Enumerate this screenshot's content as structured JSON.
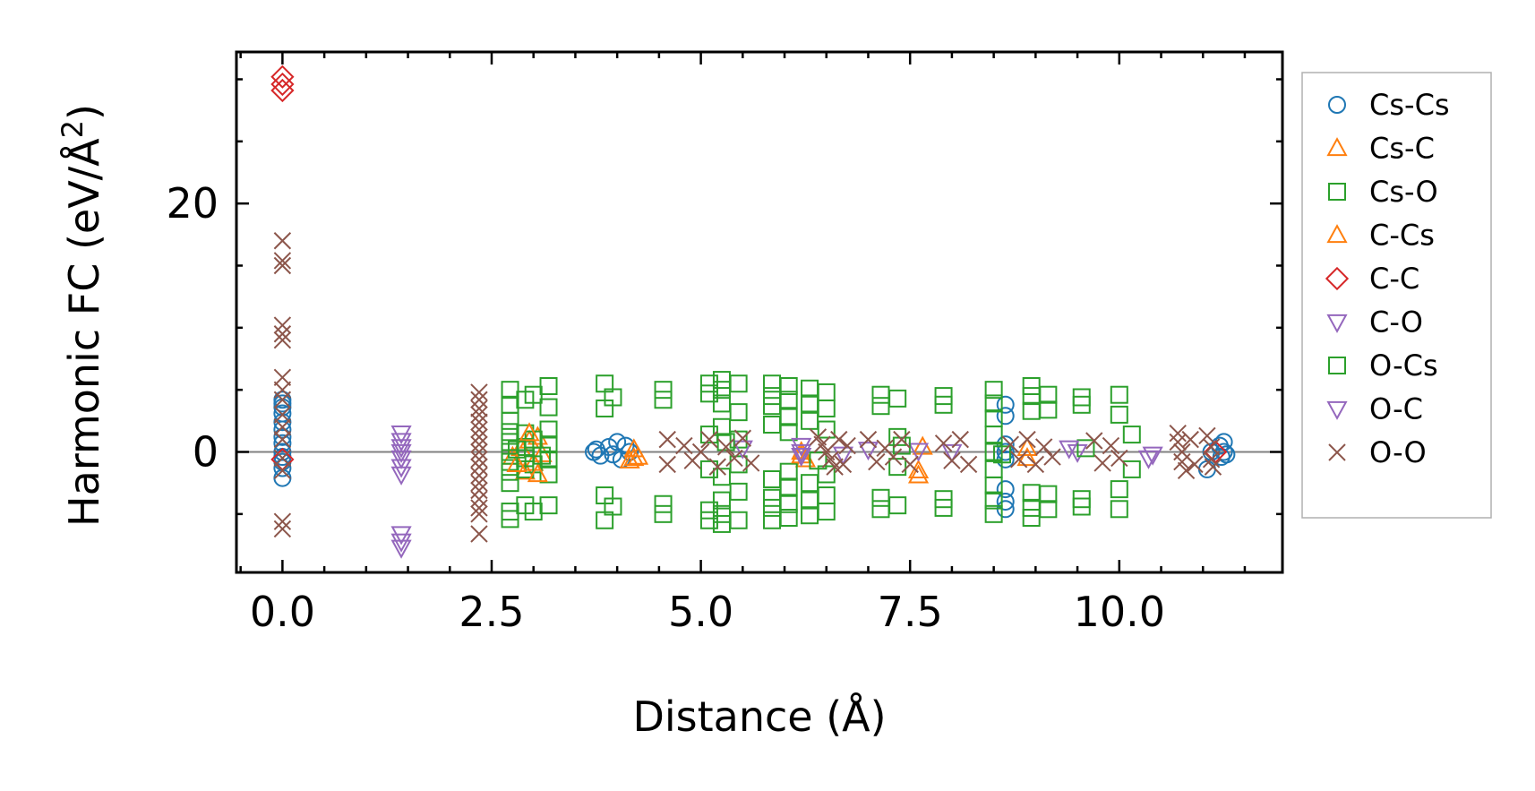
{
  "chart_data": {
    "type": "scatter",
    "title": "",
    "xlabel": "Distance (Å)",
    "ylabel_main": "Harmonic FC (eV/Å",
    "ylabel_sup": "2",
    "ylabel_close": ")",
    "xlim": [
      -0.55,
      11.95
    ],
    "ylim": [
      -9.7,
      32.2
    ],
    "xticks": [
      0.0,
      2.5,
      5.0,
      7.5,
      10.0
    ],
    "xtick_labels": [
      "0.0",
      "2.5",
      "5.0",
      "7.5",
      "10.0"
    ],
    "xminor_step": 0.5,
    "yticks": [
      0,
      20
    ],
    "ytick_labels": [
      "0",
      "20"
    ],
    "yminor_step": 5,
    "zero_line": 0,
    "legend_position": "outside-right",
    "series": [
      {
        "name": "Cs-Cs",
        "label": "Cs-Cs",
        "marker": "circle",
        "color": "#1f77b4",
        "points": [
          [
            0,
            0
          ],
          [
            0,
            0.7
          ],
          [
            0,
            1.2
          ],
          [
            0,
            1.8
          ],
          [
            0,
            2.4
          ],
          [
            0,
            3.1
          ],
          [
            0,
            3.6
          ],
          [
            0,
            3.9
          ],
          [
            0,
            4.2
          ],
          [
            0,
            -0.4
          ],
          [
            0,
            -0.8
          ],
          [
            0,
            -1.3
          ],
          [
            0,
            -2.1
          ],
          [
            3.72,
            0
          ],
          [
            3.75,
            0.2
          ],
          [
            3.8,
            -0.3
          ],
          [
            3.9,
            0.4
          ],
          [
            3.95,
            -0.2
          ],
          [
            4.0,
            0.8
          ],
          [
            4.05,
            -0.6
          ],
          [
            4.1,
            0.5
          ],
          [
            4.15,
            0
          ],
          [
            8.64,
            3.8
          ],
          [
            8.64,
            2.9
          ],
          [
            8.64,
            -3.0
          ],
          [
            8.64,
            -4.0
          ],
          [
            8.64,
            -4.6
          ],
          [
            8.64,
            0
          ],
          [
            8.64,
            0.6
          ],
          [
            8.64,
            -0.6
          ],
          [
            11.05,
            -1.4
          ],
          [
            11.1,
            0
          ],
          [
            11.2,
            0.5
          ],
          [
            11.22,
            -0.4
          ],
          [
            11.25,
            0
          ],
          [
            11.25,
            0.8
          ],
          [
            11.28,
            -0.2
          ]
        ]
      },
      {
        "name": "Cs-C",
        "label": "Cs-C",
        "marker": "triangle-up",
        "color": "#ff7f0e",
        "points": [
          [
            2.75,
            -0.4
          ],
          [
            2.85,
            0.3
          ],
          [
            2.9,
            -1.6
          ],
          [
            2.95,
            0.9
          ],
          [
            3.0,
            -0.9
          ],
          [
            3.05,
            1.2
          ],
          [
            3.1,
            -0.2
          ],
          [
            4.15,
            -0.7
          ],
          [
            4.2,
            0.2
          ],
          [
            4.25,
            -0.4
          ],
          [
            6.2,
            0
          ],
          [
            6.25,
            -0.6
          ],
          [
            7.6,
            -1.9
          ],
          [
            7.65,
            0.4
          ],
          [
            8.9,
            -0.5
          ]
        ]
      },
      {
        "name": "Cs-O",
        "label": "Cs-O",
        "marker": "square",
        "color": "#2ca02c",
        "points": [
          [
            2.72,
            5.0
          ],
          [
            2.72,
            3.8
          ],
          [
            2.72,
            2.5
          ],
          [
            2.72,
            1.6
          ],
          [
            2.72,
            0.8
          ],
          [
            2.72,
            0
          ],
          [
            2.72,
            -0.8
          ],
          [
            2.72,
            -1.6
          ],
          [
            2.72,
            -2.5
          ],
          [
            2.72,
            -4.8
          ],
          [
            2.72,
            -5.4
          ],
          [
            2.9,
            4.2
          ],
          [
            2.9,
            1.5
          ],
          [
            2.9,
            0.4
          ],
          [
            2.9,
            -0.5
          ],
          [
            2.9,
            -1.4
          ],
          [
            2.9,
            -4.3
          ],
          [
            3.0,
            4.6
          ],
          [
            3.0,
            1.0
          ],
          [
            3.0,
            -1.0
          ],
          [
            3.0,
            -4.8
          ],
          [
            3.18,
            5.3
          ],
          [
            3.18,
            3.6
          ],
          [
            3.18,
            1.8
          ],
          [
            3.18,
            0.6
          ],
          [
            3.18,
            -0.6
          ],
          [
            3.18,
            -1.8
          ],
          [
            3.18,
            -4.3
          ],
          [
            3.85,
            5.5
          ],
          [
            3.85,
            3.5
          ],
          [
            3.85,
            -3.5
          ],
          [
            3.85,
            -5.5
          ],
          [
            3.95,
            4.4
          ],
          [
            3.95,
            -4.4
          ],
          [
            4.55,
            5.0
          ],
          [
            4.55,
            4.2
          ],
          [
            4.55,
            -4.2
          ],
          [
            4.55,
            -5.0
          ],
          [
            5.1,
            5.5
          ],
          [
            5.1,
            4.7
          ],
          [
            5.1,
            1.4
          ],
          [
            5.1,
            -1.4
          ],
          [
            5.1,
            -4.7
          ],
          [
            5.1,
            -5.5
          ],
          [
            5.25,
            5.8
          ],
          [
            5.25,
            5.0
          ],
          [
            5.25,
            3.9
          ],
          [
            5.25,
            2.0
          ],
          [
            5.25,
            -2.0
          ],
          [
            5.25,
            -3.9
          ],
          [
            5.25,
            -5.0
          ],
          [
            5.25,
            -5.8
          ],
          [
            5.45,
            5.5
          ],
          [
            5.45,
            3.2
          ],
          [
            5.45,
            1.0
          ],
          [
            5.45,
            -1.0
          ],
          [
            5.45,
            -3.2
          ],
          [
            5.45,
            -5.5
          ],
          [
            5.85,
            5.5
          ],
          [
            5.85,
            4.5
          ],
          [
            5.85,
            3.7
          ],
          [
            5.85,
            2.2
          ],
          [
            5.85,
            -2.2
          ],
          [
            5.85,
            -3.7
          ],
          [
            5.85,
            -4.5
          ],
          [
            5.85,
            -5.5
          ],
          [
            6.05,
            5.3
          ],
          [
            6.05,
            4.2
          ],
          [
            6.05,
            2.8
          ],
          [
            6.05,
            1.6
          ],
          [
            6.05,
            -1.6
          ],
          [
            6.05,
            -2.8
          ],
          [
            6.05,
            -4.2
          ],
          [
            6.05,
            -5.3
          ],
          [
            6.3,
            5.1
          ],
          [
            6.3,
            3.9
          ],
          [
            6.3,
            2.5
          ],
          [
            6.3,
            -2.5
          ],
          [
            6.3,
            -3.9
          ],
          [
            6.3,
            -5.1
          ],
          [
            6.5,
            4.8
          ],
          [
            6.5,
            3.5
          ],
          [
            6.5,
            1.8
          ],
          [
            6.5,
            -1.8
          ],
          [
            6.5,
            -3.5
          ],
          [
            6.5,
            -4.8
          ],
          [
            7.15,
            4.6
          ],
          [
            7.15,
            3.7
          ],
          [
            7.15,
            -3.7
          ],
          [
            7.15,
            -4.6
          ],
          [
            7.35,
            4.3
          ],
          [
            7.35,
            1.2
          ],
          [
            7.35,
            -1.2
          ],
          [
            7.35,
            -4.3
          ],
          [
            7.9,
            4.5
          ],
          [
            7.9,
            3.8
          ],
          [
            7.9,
            -3.8
          ],
          [
            7.9,
            -4.5
          ],
          [
            8.5,
            5.0
          ],
          [
            8.5,
            3.9
          ],
          [
            8.5,
            2.7
          ],
          [
            8.5,
            1.4
          ],
          [
            8.5,
            0
          ],
          [
            8.5,
            -1.4
          ],
          [
            8.5,
            -2.7
          ],
          [
            8.5,
            -3.9
          ],
          [
            8.5,
            -5.0
          ],
          [
            8.95,
            5.3
          ],
          [
            8.95,
            4.5
          ],
          [
            8.95,
            3.3
          ],
          [
            8.95,
            -3.3
          ],
          [
            8.95,
            -4.5
          ],
          [
            8.95,
            -5.3
          ],
          [
            9.15,
            4.6
          ],
          [
            9.15,
            3.4
          ],
          [
            9.15,
            -3.4
          ],
          [
            9.15,
            -4.6
          ],
          [
            9.55,
            4.4
          ],
          [
            9.55,
            3.8
          ],
          [
            9.55,
            -3.8
          ],
          [
            9.55,
            -4.4
          ],
          [
            10.0,
            4.6
          ],
          [
            10.0,
            3.0
          ],
          [
            10.0,
            -3.0
          ],
          [
            10.0,
            -4.6
          ],
          [
            10.15,
            1.4
          ],
          [
            10.15,
            -1.4
          ]
        ]
      },
      {
        "name": "C-Cs",
        "label": "C-Cs",
        "marker": "triangle-up",
        "color": "#ff7f0e",
        "points": [
          [
            2.8,
            -1.0
          ],
          [
            2.95,
            1.5
          ],
          [
            3.05,
            -1.8
          ],
          [
            4.2,
            -0.5
          ],
          [
            6.2,
            -0.3
          ],
          [
            7.6,
            -1.5
          ],
          [
            8.9,
            0.3
          ]
        ]
      },
      {
        "name": "C-C",
        "label": "C-C",
        "marker": "diamond",
        "color": "#d62728",
        "points": [
          [
            0,
            30.2
          ],
          [
            0,
            29.6
          ],
          [
            0,
            29.1
          ],
          [
            0,
            -0.6
          ],
          [
            11.15,
            0
          ]
        ]
      },
      {
        "name": "C-O",
        "label": "C-O",
        "marker": "triangle-down",
        "color": "#9467bd",
        "points": [
          [
            1.42,
            1.5
          ],
          [
            1.42,
            0.9
          ],
          [
            1.42,
            0.4
          ],
          [
            1.42,
            0
          ],
          [
            1.42,
            -0.5
          ],
          [
            1.42,
            -1.2
          ],
          [
            1.42,
            -1.8
          ],
          [
            1.42,
            -6.6
          ],
          [
            1.42,
            -7.2
          ],
          [
            1.42,
            -7.7
          ],
          [
            5.5,
            0.3
          ],
          [
            6.2,
            0
          ],
          [
            6.2,
            0.5
          ],
          [
            6.7,
            -0.2
          ],
          [
            7.6,
            0.1
          ],
          [
            9.5,
            0
          ],
          [
            10.4,
            -0.2
          ]
        ]
      },
      {
        "name": "O-Cs",
        "label": "O-Cs",
        "marker": "square",
        "color": "#2ca02c",
        "points": [
          [
            2.8,
            0.2
          ],
          [
            3.1,
            -0.3
          ],
          [
            5.3,
            0.8
          ],
          [
            6.4,
            -0.7
          ],
          [
            7.4,
            0.5
          ],
          [
            8.6,
            -0.2
          ],
          [
            9.6,
            0.3
          ]
        ]
      },
      {
        "name": "O-C",
        "label": "O-C",
        "marker": "triangle-down",
        "color": "#9467bd",
        "points": [
          [
            6.2,
            -0.3
          ],
          [
            7.0,
            0.2
          ],
          [
            8.0,
            0
          ],
          [
            9.4,
            0.3
          ],
          [
            10.35,
            -0.5
          ]
        ]
      },
      {
        "name": "O-O",
        "label": "O-O",
        "marker": "x",
        "color": "#8c564b",
        "points": [
          [
            0,
            17.0
          ],
          [
            0,
            15.4
          ],
          [
            0,
            15.0
          ],
          [
            0,
            10.2
          ],
          [
            0,
            9.5
          ],
          [
            0,
            9.0
          ],
          [
            0,
            6.0
          ],
          [
            0,
            5.0
          ],
          [
            0,
            4.2
          ],
          [
            0,
            3.0
          ],
          [
            0,
            2.0
          ],
          [
            0,
            1.0
          ],
          [
            0,
            -0.5
          ],
          [
            0,
            -1.5
          ],
          [
            0,
            -5.6
          ],
          [
            0,
            -6.2
          ],
          [
            2.35,
            4.8
          ],
          [
            2.35,
            4.2
          ],
          [
            2.35,
            3.5
          ],
          [
            2.35,
            3.0
          ],
          [
            2.35,
            2.4
          ],
          [
            2.35,
            1.8
          ],
          [
            2.35,
            1.2
          ],
          [
            2.35,
            0.6
          ],
          [
            2.35,
            0
          ],
          [
            2.35,
            -0.6
          ],
          [
            2.35,
            -1.2
          ],
          [
            2.35,
            -1.9
          ],
          [
            2.35,
            -2.5
          ],
          [
            2.35,
            -3.1
          ],
          [
            2.35,
            -3.8
          ],
          [
            2.35,
            -4.5
          ],
          [
            2.35,
            -5.0
          ],
          [
            2.35,
            -6.6
          ],
          [
            4.6,
            1.0
          ],
          [
            4.6,
            -1.0
          ],
          [
            4.8,
            0.5
          ],
          [
            4.9,
            -0.7
          ],
          [
            5.0,
            0
          ],
          [
            5.1,
            1.0
          ],
          [
            5.2,
            -1.2
          ],
          [
            5.3,
            0.4
          ],
          [
            5.4,
            -0.5
          ],
          [
            5.5,
            1.1
          ],
          [
            5.6,
            -0.9
          ],
          [
            6.4,
            1.2
          ],
          [
            6.45,
            0.6
          ],
          [
            6.5,
            0
          ],
          [
            6.55,
            -0.6
          ],
          [
            6.6,
            -1.2
          ],
          [
            6.65,
            1.0
          ],
          [
            6.7,
            -1.0
          ],
          [
            6.75,
            0.5
          ],
          [
            7.0,
            1.0
          ],
          [
            7.1,
            -0.8
          ],
          [
            7.2,
            0.3
          ],
          [
            7.3,
            -0.4
          ],
          [
            7.4,
            1.0
          ],
          [
            7.5,
            -1.0
          ],
          [
            7.9,
            0.7
          ],
          [
            8.0,
            -0.7
          ],
          [
            8.1,
            1.0
          ],
          [
            8.2,
            -1.0
          ],
          [
            8.7,
            0.6
          ],
          [
            8.8,
            -0.6
          ],
          [
            8.9,
            1.0
          ],
          [
            9.0,
            -1.0
          ],
          [
            9.1,
            0.4
          ],
          [
            9.2,
            -0.4
          ],
          [
            9.7,
            0.9
          ],
          [
            9.8,
            -0.9
          ],
          [
            9.9,
            0.5
          ],
          [
            10.0,
            -0.5
          ],
          [
            10.7,
            1.5
          ],
          [
            10.7,
            0.8
          ],
          [
            10.75,
            0
          ],
          [
            10.75,
            -0.8
          ],
          [
            10.8,
            -1.5
          ],
          [
            10.85,
            1.0
          ],
          [
            10.9,
            -1.0
          ],
          [
            11.05,
            1.3
          ],
          [
            11.1,
            0.4
          ],
          [
            11.1,
            -0.6
          ],
          [
            11.12,
            -1.2
          ]
        ]
      }
    ]
  }
}
